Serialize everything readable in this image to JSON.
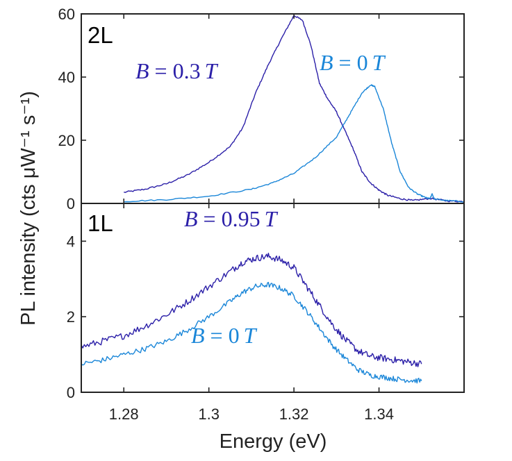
{
  "figure": {
    "xlabel": "Energy (eV)",
    "ylabel": "PL intensity (cts μW⁻¹ s⁻¹)",
    "xticks": [
      "1.28",
      "1.3",
      "1.32",
      "1.34"
    ],
    "colors": {
      "dark": "#2b1fa8",
      "light": "#1a86d8",
      "axis": "#222222"
    }
  },
  "chart_data": [
    {
      "type": "line",
      "panel_label": "2L",
      "xlim": [
        1.27,
        1.36
      ],
      "ylim": [
        0,
        60
      ],
      "yticks": [
        "0",
        "20",
        "40",
        "60"
      ],
      "annotations": [
        {
          "italic": "B",
          "eq": " = ",
          "num": "0.3",
          "unit": "T",
          "color": "#2b1fa8"
        },
        {
          "italic": "B",
          "eq": " = ",
          "num": "0",
          "unit": "T",
          "color": "#1a86d8"
        }
      ],
      "series": [
        {
          "color": "#2b1fa8",
          "noise": 0.25,
          "x": [
            1.28,
            1.285,
            1.29,
            1.295,
            1.3,
            1.305,
            1.308,
            1.311,
            1.314,
            1.317,
            1.32,
            1.322,
            1.324,
            1.326,
            1.328,
            1.33,
            1.332,
            1.334,
            1.336,
            1.338,
            1.34,
            1.342,
            1.345,
            1.348,
            1.352,
            1.356,
            1.36
          ],
          "y": [
            3.5,
            4.5,
            6.2,
            9,
            13,
            18,
            24,
            35,
            44,
            52,
            59.5,
            58,
            50,
            38,
            33,
            29,
            23,
            17,
            10,
            6.5,
            4.2,
            2.6,
            1.5,
            0.9,
            1.6,
            0.8,
            0.6
          ]
        },
        {
          "color": "#1a86d8",
          "noise": 0.2,
          "x": [
            1.28,
            1.29,
            1.3,
            1.31,
            1.315,
            1.32,
            1.325,
            1.33,
            1.333,
            1.336,
            1.338,
            1.339,
            1.341,
            1.343,
            1.345,
            1.347,
            1.349,
            1.351,
            1.352,
            1.3525,
            1.353,
            1.356,
            1.36
          ],
          "y": [
            0.6,
            1.2,
            2.3,
            4.5,
            6.5,
            9.5,
            14.5,
            21,
            28,
            35,
            37.5,
            37,
            30,
            19,
            10,
            5,
            3,
            1.8,
            1.5,
            3.0,
            1.4,
            0.9,
            0.6
          ]
        }
      ]
    },
    {
      "type": "line",
      "panel_label": "1L",
      "xlim": [
        1.27,
        1.36
      ],
      "ylim": [
        0,
        5
      ],
      "yticks": [
        "0",
        "2",
        "4"
      ],
      "annotations": [
        {
          "italic": "B",
          "eq": " = ",
          "num": "0.95",
          "unit": "T",
          "color": "#2b1fa8"
        },
        {
          "italic": "B",
          "eq": " = ",
          "num": "0",
          "unit": "T",
          "color": "#1a86d8"
        }
      ],
      "series": [
        {
          "color": "#2b1fa8",
          "noise": 0.09,
          "x": [
            1.27,
            1.275,
            1.28,
            1.285,
            1.29,
            1.295,
            1.3,
            1.305,
            1.308,
            1.311,
            1.314,
            1.317,
            1.32,
            1.323,
            1.326,
            1.329,
            1.332,
            1.335,
            1.338,
            1.341,
            1.344,
            1.347,
            1.35
          ],
          "y": [
            1.2,
            1.35,
            1.5,
            1.75,
            2.05,
            2.4,
            2.8,
            3.2,
            3.45,
            3.55,
            3.6,
            3.5,
            3.3,
            2.8,
            2.3,
            1.8,
            1.4,
            1.1,
            0.95,
            0.9,
            0.85,
            0.8,
            0.75
          ]
        },
        {
          "color": "#1a86d8",
          "noise": 0.07,
          "x": [
            1.27,
            1.275,
            1.28,
            1.285,
            1.29,
            1.295,
            1.3,
            1.305,
            1.308,
            1.311,
            1.314,
            1.317,
            1.32,
            1.323,
            1.326,
            1.329,
            1.332,
            1.335,
            1.338,
            1.341,
            1.344,
            1.347,
            1.35
          ],
          "y": [
            0.75,
            0.85,
            1.0,
            1.15,
            1.35,
            1.65,
            2.0,
            2.4,
            2.65,
            2.8,
            2.85,
            2.75,
            2.55,
            2.15,
            1.7,
            1.25,
            0.9,
            0.6,
            0.45,
            0.4,
            0.35,
            0.32,
            0.3
          ]
        }
      ]
    }
  ]
}
